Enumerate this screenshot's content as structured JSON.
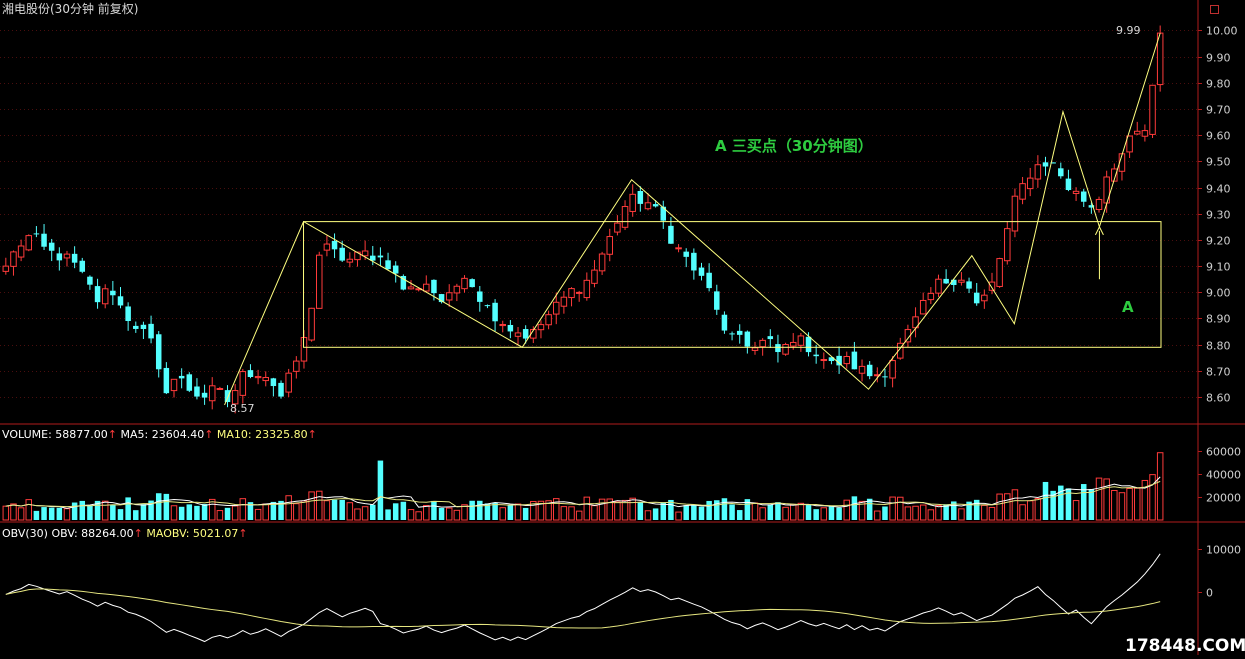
{
  "title": "湘电股份(30分钟 前复权)",
  "watermark": "178448.COM",
  "colors": {
    "background": "#000000",
    "up": "#ff3b3b",
    "down": "#54ffff",
    "axis": "#b01c1c",
    "grid": "#4a0e0e",
    "annotation": "#ffff80",
    "label_green": "#2ecc40",
    "ma5": "#ffffff",
    "ma10": "#e6e680"
  },
  "chart_data": [
    {
      "type": "candlestick",
      "name": "price",
      "ylim": [
        8.52,
        10.04
      ],
      "yticks": [
        "8.60",
        "8.70",
        "8.80",
        "8.90",
        "9.00",
        "9.10",
        "9.20",
        "9.30",
        "9.40",
        "9.50",
        "9.60",
        "9.70",
        "9.80",
        "9.90",
        "10.00"
      ],
      "bar_count": 152,
      "close_path": [
        [
          0,
          9.1
        ],
        [
          2,
          9.18
        ],
        [
          4,
          9.22
        ],
        [
          6,
          9.16
        ],
        [
          10,
          9.12
        ],
        [
          12,
          9.05
        ],
        [
          14,
          8.97
        ],
        [
          16,
          9.02
        ],
        [
          18,
          8.92
        ],
        [
          20,
          8.87
        ],
        [
          22,
          8.82
        ],
        [
          24,
          8.62
        ],
        [
          26,
          8.68
        ],
        [
          28,
          8.63
        ],
        [
          30,
          8.6
        ],
        [
          32,
          8.63
        ],
        [
          34,
          8.58
        ],
        [
          36,
          8.68
        ],
        [
          38,
          8.7
        ],
        [
          40,
          8.68
        ],
        [
          42,
          8.6
        ],
        [
          44,
          8.72
        ],
        [
          46,
          8.85
        ],
        [
          48,
          9.18
        ],
        [
          50,
          9.15
        ],
        [
          52,
          9.12
        ],
        [
          55,
          9.15
        ],
        [
          58,
          9.12
        ],
        [
          61,
          9.0
        ],
        [
          64,
          9.04
        ],
        [
          67,
          8.95
        ],
        [
          70,
          9.08
        ],
        [
          73,
          8.95
        ],
        [
          77,
          8.86
        ],
        [
          80,
          8.83
        ],
        [
          83,
          8.92
        ],
        [
          86,
          9.0
        ],
        [
          89,
          9.05
        ],
        [
          92,
          9.2
        ],
        [
          94,
          9.32
        ],
        [
          96,
          9.36
        ],
        [
          98,
          9.34
        ],
        [
          100,
          9.28
        ],
        [
          102,
          9.18
        ],
        [
          104,
          9.12
        ],
        [
          106,
          9.05
        ],
        [
          108,
          8.98
        ],
        [
          110,
          8.8
        ],
        [
          112,
          8.84
        ],
        [
          114,
          8.78
        ],
        [
          116,
          8.82
        ],
        [
          118,
          8.76
        ],
        [
          120,
          8.83
        ],
        [
          122,
          8.8
        ],
        [
          124,
          8.76
        ],
        [
          126,
          8.72
        ],
        [
          128,
          8.74
        ],
        [
          130,
          8.71
        ],
        [
          132,
          8.68
        ],
        [
          134,
          8.7
        ],
        [
          136,
          8.78
        ],
        [
          138,
          8.86
        ],
        [
          140,
          8.95
        ],
        [
          142,
          9.03
        ],
        [
          144,
          9.05
        ],
        [
          146,
          9.06
        ],
        [
          148,
          8.95
        ],
        [
          150,
          9.0
        ],
        [
          152,
          9.17
        ],
        [
          154,
          9.36
        ],
        [
          156,
          9.45
        ],
        [
          158,
          9.5
        ],
        [
          160,
          9.48
        ],
        [
          162,
          9.4
        ],
        [
          164,
          9.36
        ],
        [
          166,
          9.32
        ],
        [
          168,
          9.46
        ],
        [
          170,
          9.52
        ],
        [
          172,
          9.6
        ],
        [
          174,
          9.62
        ],
        [
          176,
          9.99
        ]
      ],
      "close_path_note": "",
      "annotations": [
        {
          "text": "A  三买点（30分钟图）",
          "color": "green"
        },
        {
          "text": "A",
          "color": "green"
        },
        {
          "text": "9.99",
          "kind": "high-price-label"
        },
        {
          "text": "8.57",
          "kind": "low-price-label"
        }
      ],
      "zigzag": [
        [
          0.0,
          8.57
        ],
        [
          0.0,
          9.27
        ],
        [
          0.0,
          8.79
        ],
        [
          0.0,
          9.43
        ],
        [
          0.0,
          8.63
        ],
        [
          0.0,
          9.14
        ],
        [
          0.0,
          8.88
        ],
        [
          0.0,
          9.69
        ],
        [
          0.0,
          9.25
        ],
        [
          0.0,
          9.99
        ]
      ],
      "box": {
        "top": 9.27,
        "bottom": 8.79
      },
      "marker_arrow": {
        "price_from": 9.05,
        "price_to": 9.25
      }
    },
    {
      "type": "bar",
      "name": "volume",
      "legend": [
        {
          "label": "VOLUME: 58877.00",
          "color": "#ffffff"
        },
        {
          "label": "MA5: 23604.40",
          "color": "#ffffff"
        },
        {
          "label": "MA10: 23325.80",
          "color": "#ffff80"
        }
      ],
      "ylim": [
        0,
        70000
      ],
      "yticks": [
        "20000",
        "40000",
        "60000"
      ]
    },
    {
      "type": "line",
      "name": "obv",
      "legend": [
        {
          "label": "OBV(30)",
          "color": "#ffffff"
        },
        {
          "label": "OBV: 88264.00",
          "color": "#ffffff"
        },
        {
          "label": "MAOBV: 5021.07",
          "color": "#ffff80"
        }
      ],
      "ylim": [
        -13000,
        12000
      ],
      "yticks": [
        "10000",
        "0"
      ]
    }
  ]
}
